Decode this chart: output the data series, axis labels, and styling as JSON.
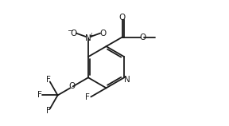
{
  "bg": "#ffffff",
  "lc": "#1a1a1a",
  "lw": 1.3,
  "fs": 7.5,
  "xlim": [
    -4.2,
    5.0
  ],
  "ylim": [
    -2.8,
    3.2
  ]
}
